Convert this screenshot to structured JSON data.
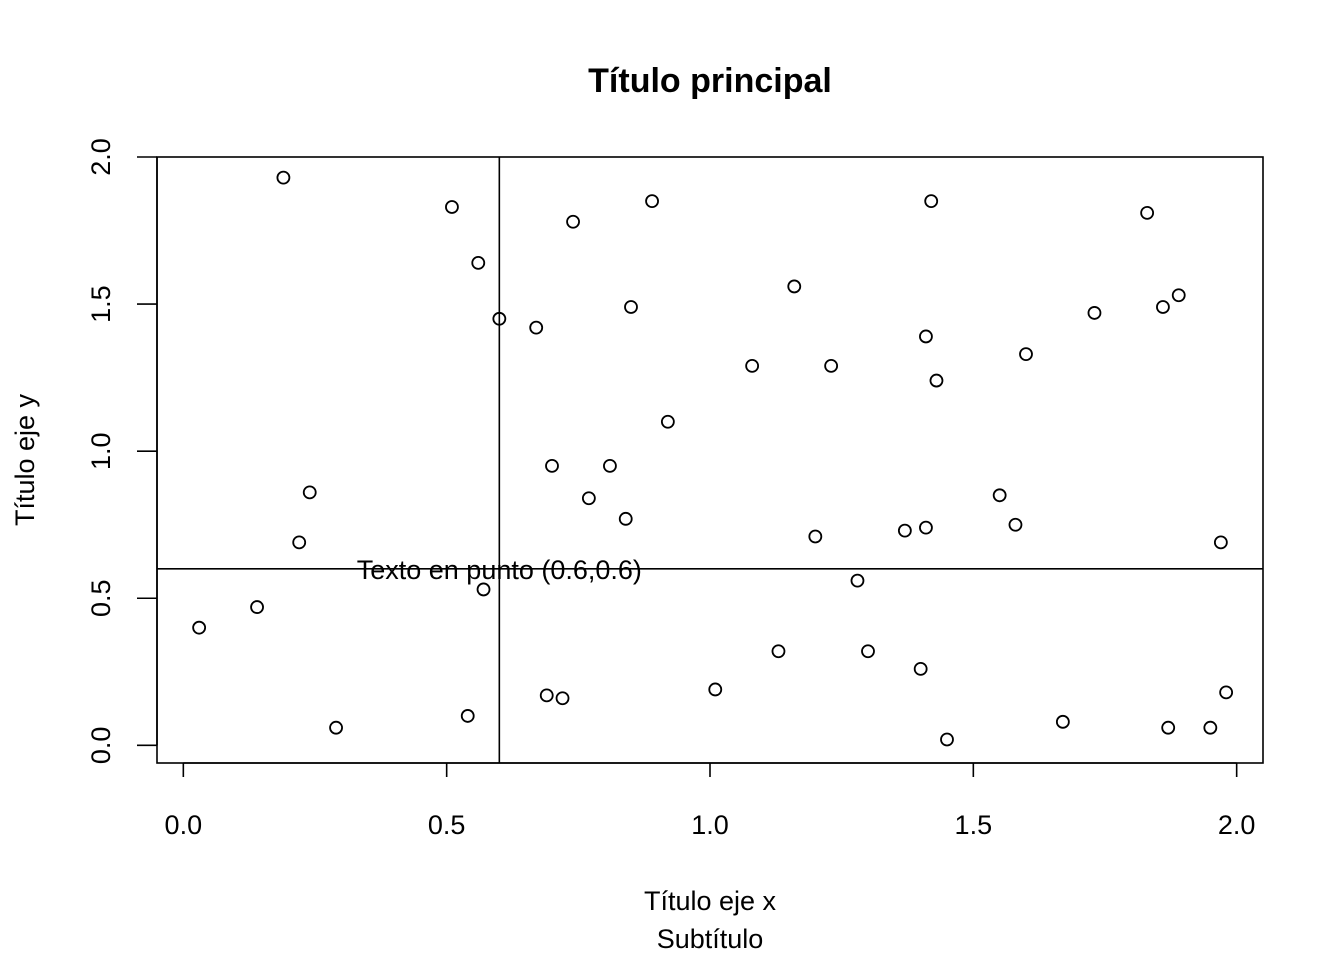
{
  "chart_data": {
    "type": "scatter",
    "title": "Título principal",
    "subtitle": "Subtítulo",
    "xlabel": "Título eje x",
    "ylabel": "Título eje y",
    "xlim": [
      -0.05,
      2.05
    ],
    "ylim": [
      -0.06,
      2.0
    ],
    "x_ticks": [
      0.0,
      0.5,
      1.0,
      1.5,
      2.0
    ],
    "x_tick_labels": [
      "0.0",
      "0.5",
      "1.0",
      "1.5",
      "2.0"
    ],
    "y_ticks": [
      0.0,
      0.5,
      1.0,
      1.5,
      2.0
    ],
    "y_tick_labels": [
      "0.0",
      "0.5",
      "1.0",
      "1.5",
      "2.0"
    ],
    "grid": false,
    "marker": "open-circle",
    "reference_lines": {
      "vertical_x": 0.6,
      "horizontal_y": 0.6
    },
    "annotation": {
      "text": "Texto en punto (0.6,0.6)",
      "x": 0.6,
      "y": 0.6
    },
    "points": [
      {
        "x": 0.03,
        "y": 0.4
      },
      {
        "x": 0.14,
        "y": 0.47
      },
      {
        "x": 0.19,
        "y": 1.93
      },
      {
        "x": 0.22,
        "y": 0.69
      },
      {
        "x": 0.24,
        "y": 0.86
      },
      {
        "x": 0.29,
        "y": 0.06
      },
      {
        "x": 0.51,
        "y": 1.83
      },
      {
        "x": 0.54,
        "y": 0.1
      },
      {
        "x": 0.56,
        "y": 1.64
      },
      {
        "x": 0.57,
        "y": 0.53
      },
      {
        "x": 0.6,
        "y": 1.45
      },
      {
        "x": 0.67,
        "y": 1.42
      },
      {
        "x": 0.69,
        "y": 0.17
      },
      {
        "x": 0.7,
        "y": 0.95
      },
      {
        "x": 0.72,
        "y": 0.16
      },
      {
        "x": 0.74,
        "y": 1.78
      },
      {
        "x": 0.77,
        "y": 0.84
      },
      {
        "x": 0.81,
        "y": 0.95
      },
      {
        "x": 0.84,
        "y": 0.77
      },
      {
        "x": 0.85,
        "y": 1.49
      },
      {
        "x": 0.89,
        "y": 1.85
      },
      {
        "x": 0.92,
        "y": 1.1
      },
      {
        "x": 1.01,
        "y": 0.19
      },
      {
        "x": 1.08,
        "y": 1.29
      },
      {
        "x": 1.13,
        "y": 0.32
      },
      {
        "x": 1.16,
        "y": 1.56
      },
      {
        "x": 1.2,
        "y": 0.71
      },
      {
        "x": 1.23,
        "y": 1.29
      },
      {
        "x": 1.28,
        "y": 0.56
      },
      {
        "x": 1.3,
        "y": 0.32
      },
      {
        "x": 1.37,
        "y": 0.73
      },
      {
        "x": 1.4,
        "y": 0.26
      },
      {
        "x": 1.41,
        "y": 0.74
      },
      {
        "x": 1.41,
        "y": 1.39
      },
      {
        "x": 1.42,
        "y": 1.85
      },
      {
        "x": 1.43,
        "y": 1.24
      },
      {
        "x": 1.45,
        "y": 0.02
      },
      {
        "x": 1.55,
        "y": 0.85
      },
      {
        "x": 1.58,
        "y": 0.75
      },
      {
        "x": 1.6,
        "y": 1.33
      },
      {
        "x": 1.67,
        "y": 0.08
      },
      {
        "x": 1.73,
        "y": 1.47
      },
      {
        "x": 1.83,
        "y": 1.81
      },
      {
        "x": 1.86,
        "y": 1.49
      },
      {
        "x": 1.87,
        "y": 0.06
      },
      {
        "x": 1.89,
        "y": 1.53
      },
      {
        "x": 1.95,
        "y": 0.06
      },
      {
        "x": 1.97,
        "y": 0.69
      },
      {
        "x": 1.98,
        "y": 0.18
      }
    ]
  }
}
